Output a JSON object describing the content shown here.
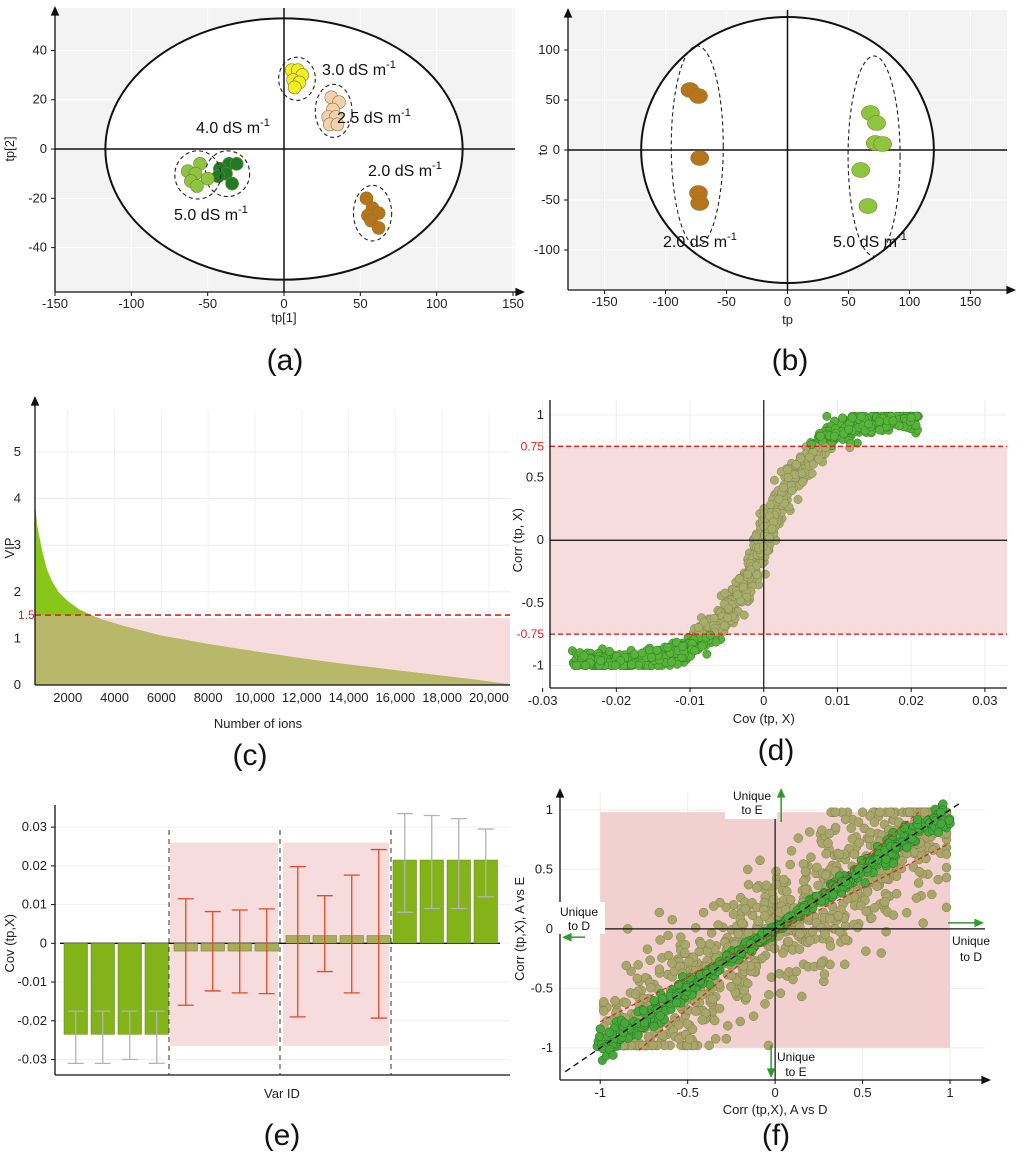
{
  "panels": [
    {
      "id": "a",
      "caption": "(a)",
      "chart_data": {
        "type": "scatter",
        "xlabel": "tp[1]",
        "ylabel": "tp[2]",
        "xlim": [
          -150,
          150
        ],
        "ylim": [
          -58,
          56
        ],
        "xticks": [
          -150,
          -100,
          -50,
          0,
          50,
          100,
          150
        ],
        "yticks": [
          40,
          20,
          0,
          -20,
          -40
        ],
        "ellipse": {
          "rx": 117,
          "ry": 53
        },
        "groups": [
          {
            "label": "3.0 dS m",
            "sup": "-1",
            "color": "#f3ee1f",
            "points": [
              [
                5,
                32
              ],
              [
                9,
                32
              ],
              [
                12,
                30
              ],
              [
                6,
                28
              ],
              [
                10,
                27
              ],
              [
                7,
                25
              ]
            ]
          },
          {
            "label": "2.5 dS m",
            "sup": "-1",
            "color": "#f6cfae",
            "points": [
              [
                31,
                21
              ],
              [
                36,
                19
              ],
              [
                32,
                16
              ],
              [
                29,
                13
              ],
              [
                34,
                13
              ],
              [
                30,
                10
              ],
              [
                35,
                10
              ]
            ]
          },
          {
            "label": "4.0 dS m",
            "sup": "-1",
            "color": "#1e7d24",
            "points": [
              [
                -36,
                -6
              ],
              [
                -31,
                -6
              ],
              [
                -42,
                -8
              ],
              [
                -38,
                -10
              ],
              [
                -43,
                -11
              ],
              [
                -34,
                -14
              ]
            ]
          },
          {
            "label": "5.0 dS m",
            "sup": "-1",
            "color": "#8cc63e",
            "points": [
              [
                -55,
                -6
              ],
              [
                -63,
                -9
              ],
              [
                -58,
                -10
              ],
              [
                -50,
                -12
              ],
              [
                -61,
                -13
              ],
              [
                -57,
                -15
              ]
            ]
          },
          {
            "label": "2.0 dS m",
            "sup": "-1",
            "color": "#b8741a",
            "points": [
              [
                54,
                -20
              ],
              [
                58,
                -24
              ],
              [
                55,
                -27
              ],
              [
                62,
                -26
              ],
              [
                57,
                -29
              ],
              [
                62,
                -32
              ]
            ]
          }
        ]
      }
    },
    {
      "id": "b",
      "caption": "(b)",
      "chart_data": {
        "type": "scatter",
        "xlabel": "tp",
        "ylabel": "to",
        "xlim": [
          -180,
          180
        ],
        "ylim": [
          -140,
          140
        ],
        "xticks": [
          -150,
          -100,
          -50,
          0,
          50,
          100,
          150
        ],
        "yticks": [
          100,
          50,
          0,
          -50,
          -100
        ],
        "ellipse": {
          "rx": 120,
          "ry": 133
        },
        "groups": [
          {
            "label": "2.0 dS m",
            "sup": "-1",
            "color": "#b8741a",
            "points": [
              [
                -80,
                60
              ],
              [
                -73,
                54
              ],
              [
                -72,
                -8
              ],
              [
                -73,
                -43
              ],
              [
                -72,
                -53
              ]
            ]
          },
          {
            "label": "5.0 dS m",
            "sup": "-1",
            "color": "#8cc63e",
            "points": [
              [
                68,
                37
              ],
              [
                73,
                27
              ],
              [
                72,
                7
              ],
              [
                78,
                6
              ],
              [
                60,
                -20
              ],
              [
                66,
                -56
              ]
            ]
          }
        ]
      }
    },
    {
      "id": "c",
      "caption": "(c)",
      "chart_data": {
        "type": "area",
        "xlabel": "Number of ions",
        "ylabel": "VIP",
        "xlim": [
          600,
          20900
        ],
        "ylim": [
          0,
          5.9
        ],
        "xticks": [
          2000,
          4000,
          6000,
          8000,
          10000,
          12000,
          14000,
          16000,
          18000,
          20000
        ],
        "xtick_labels": [
          "2000",
          "4000",
          "6000",
          "8000",
          "10,000",
          "12,000",
          "14,000",
          "16,000",
          "18,000",
          "20,000"
        ],
        "yticks": [
          0,
          1,
          2,
          3,
          4,
          5
        ],
        "threshold": 1.5,
        "threshold_label": "1.5",
        "curve": {
          "x": [
            600,
            700,
            900,
            1100,
            1300,
            1600,
            2000,
            2500,
            3000,
            3500,
            4500,
            6000,
            8000,
            10000,
            12000,
            14000,
            16000,
            18000,
            19500,
            20500,
            20900
          ],
          "y": [
            3.9,
            3.4,
            2.9,
            2.5,
            2.25,
            2.0,
            1.8,
            1.62,
            1.5,
            1.4,
            1.25,
            1.06,
            0.88,
            0.72,
            0.57,
            0.44,
            0.32,
            0.2,
            0.11,
            0.04,
            0.02
          ]
        }
      }
    },
    {
      "id": "d",
      "caption": "(d)",
      "chart_data": {
        "type": "scatter",
        "xlabel": "Cov (tp, X)",
        "ylabel": "Corr (tp, X)",
        "xlim": [
          -0.029,
          0.033
        ],
        "ylim": [
          -1.18,
          1.12
        ],
        "xticks": [
          -0.03,
          -0.02,
          -0.01,
          0,
          0.01,
          0.02,
          0.03
        ],
        "yticks": [
          1,
          0.5,
          0,
          -0.5,
          -1
        ],
        "ytick_labels": [
          "1",
          "0.5",
          "0",
          "-0.5",
          "-1"
        ],
        "thresholds": [
          0.75,
          -0.75
        ],
        "threshold_labels": [
          "0.75",
          "-0.75"
        ]
      }
    },
    {
      "id": "e",
      "caption": "(e)",
      "chart_data": {
        "type": "bar",
        "xlabel": "Var ID",
        "ylabel": "Cov (tp,X)",
        "ylim": [
          -0.034,
          0.037
        ],
        "yticks": [
          0.03,
          0.02,
          0.01,
          0,
          -0.01,
          -0.02,
          -0.03
        ],
        "ytick_labels": [
          "0.03",
          "0.02",
          "0.01",
          "0",
          "-0.01",
          "-0.02",
          "-0.03"
        ],
        "values": [
          -0.0235,
          -0.0235,
          -0.0235,
          -0.0235,
          -0.002,
          -0.002,
          -0.002,
          -0.002,
          0.002,
          0.002,
          0.002,
          0.002,
          0.0215,
          0.0215,
          0.0215,
          0.0215
        ],
        "err_low": [
          -0.031,
          -0.031,
          -0.03,
          -0.031,
          -0.016,
          -0.0123,
          -0.0128,
          -0.013,
          -0.019,
          -0.0073,
          -0.0128,
          -0.0193,
          0.008,
          0.009,
          0.009,
          0.012
        ],
        "err_high": [
          -0.0175,
          -0.0175,
          -0.0175,
          -0.0175,
          0.0115,
          0.0082,
          0.0086,
          0.0089,
          0.0198,
          0.0123,
          0.0176,
          0.0242,
          0.0335,
          0.033,
          0.0322,
          0.0295
        ]
      }
    },
    {
      "id": "f",
      "caption": "(f)",
      "chart_data": {
        "type": "scatter",
        "xlabel": "Corr (tp,X), A vs D",
        "ylabel": "Corr (tp,X), A vs E",
        "xlim": [
          -1.23,
          1.2
        ],
        "ylim": [
          -1.27,
          1.15
        ],
        "xticks": [
          -1,
          -0.5,
          0,
          0.5,
          1
        ],
        "xtick_labels": [
          "-1",
          "-0.5",
          "0",
          "0.5",
          "1"
        ],
        "yticks": [
          1,
          0.5,
          0,
          -0.5,
          -1
        ],
        "ytick_labels": [
          "1",
          "0.5",
          "0",
          "-0.5",
          "-1"
        ],
        "annotations": {
          "unique_e_top": [
            "Unique",
            "to E"
          ],
          "unique_d_left": [
            "Unique",
            "to D"
          ],
          "unique_d_right": [
            "Unique",
            "to D"
          ],
          "unique_e_bottom": [
            "Unique",
            "to E"
          ]
        }
      }
    }
  ]
}
